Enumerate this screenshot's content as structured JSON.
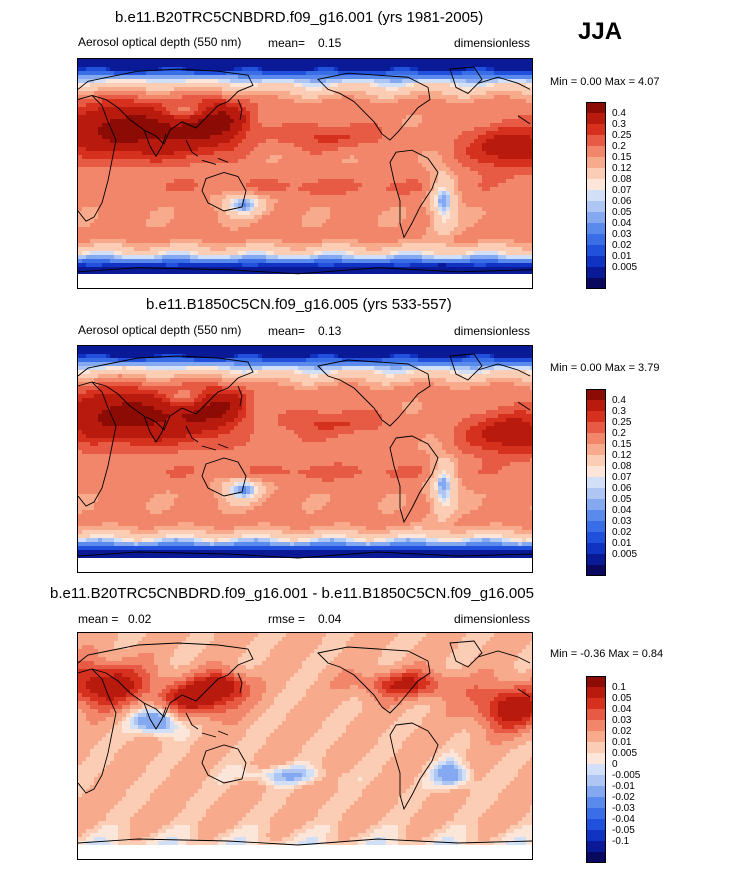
{
  "season": "JJA",
  "palette_abs": [
    "#08085f",
    "#0a1a96",
    "#1033c4",
    "#2150dc",
    "#3a6ee6",
    "#5a8aec",
    "#85a9f0",
    "#aec6f4",
    "#d2e0f7",
    "#fbe6d9",
    "#fbcdb5",
    "#f8ab8c",
    "#f2866a",
    "#e75a44",
    "#d6311f",
    "#b81a0e",
    "#8c0c05"
  ],
  "palette_diff": [
    "#08085f",
    "#0a1a96",
    "#1033c4",
    "#2150dc",
    "#3a6ee6",
    "#5a8aec",
    "#85a9f0",
    "#aec6f4",
    "#d2e0f7",
    "#fbe6d9",
    "#fbcdb5",
    "#f8ab8c",
    "#f2866a",
    "#e75a44",
    "#d6311f",
    "#b81a0e",
    "#8c0c05"
  ],
  "panels": [
    {
      "title": "b.e11.B20TRC5CNBDRD.f09_g16.001 (yrs 1981-2005)",
      "left_label": "Aerosol optical depth (550 nm)",
      "mid_label": "mean=",
      "mid_value": "0.15",
      "right_label": "dimensionless",
      "minmax": "Min =  0.00 Max =  4.07",
      "levels": [
        "0.4",
        "0.3",
        "0.25",
        "0.2",
        "0.15",
        "0.12",
        "0.08",
        "0.07",
        "0.06",
        "0.05",
        "0.04",
        "0.03",
        "0.02",
        "0.01",
        "0.005"
      ]
    },
    {
      "title": "b.e11.B1850C5CN.f09_g16.005 (yrs 533-557)",
      "left_label": "Aerosol optical depth (550 nm)",
      "mid_label": "mean=",
      "mid_value": "0.13",
      "right_label": "dimensionless",
      "minmax": "Min =  0.00 Max =  3.79",
      "levels": [
        "0.4",
        "0.3",
        "0.25",
        "0.2",
        "0.15",
        "0.12",
        "0.08",
        "0.07",
        "0.06",
        "0.05",
        "0.04",
        "0.03",
        "0.02",
        "0.01",
        "0.005"
      ]
    },
    {
      "title": "b.e11.B20TRC5CNBDRD.f09_g16.001 - b.e11.B1850C5CN.f09_g16.005",
      "left_label": "mean =",
      "left_value": "0.02",
      "mid_label": "rmse =",
      "mid_value": "0.04",
      "right_label": "dimensionless",
      "minmax": "Min = -0.36 Max =  0.84",
      "levels": [
        "0.1",
        "0.05",
        "0.04",
        "0.03",
        "0.02",
        "0.01",
        "0.005",
        "0",
        "-0.005",
        "-0.01",
        "-0.02",
        "-0.03",
        "-0.04",
        "-0.05",
        "-0.1"
      ]
    }
  ]
}
